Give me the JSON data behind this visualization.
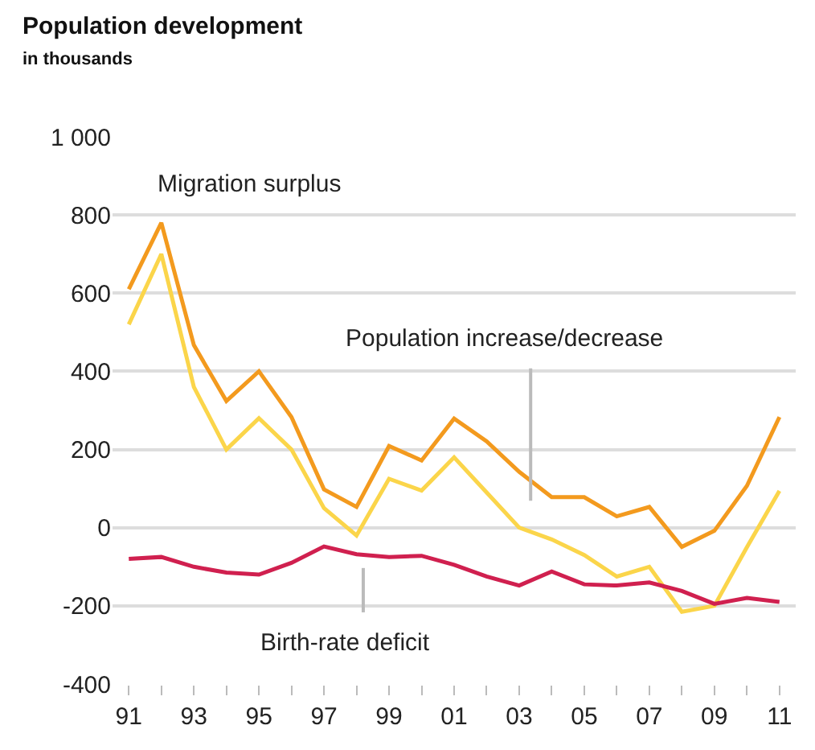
{
  "chart_data": {
    "type": "line",
    "title": "Population development",
    "subtitle": "in thousands",
    "x": [
      1991,
      1992,
      1993,
      1994,
      1995,
      1996,
      1997,
      1998,
      1999,
      2000,
      2001,
      2002,
      2003,
      2004,
      2005,
      2006,
      2007,
      2008,
      2009,
      2010,
      2011
    ],
    "series": [
      {
        "color": "#f39a1e",
        "values": [
          610,
          780,
          467,
          324,
          400,
          283,
          98,
          53,
          209,
          172,
          279,
          221,
          143,
          78,
          78,
          29,
          53,
          -49,
          -8,
          107,
          283
        ]
      },
      {
        "color": "#fbd54a",
        "values": [
          520,
          700,
          360,
          200,
          280,
          200,
          50,
          -20,
          125,
          95,
          180,
          90,
          0,
          -30,
          -70,
          -125,
          -100,
          -215,
          -200,
          -50,
          94
        ]
      },
      {
        "color": "#d0204f",
        "values": [
          -80,
          -75,
          -100,
          -115,
          -120,
          -90,
          -48,
          -68,
          -75,
          -72,
          -95,
          -125,
          -148,
          -112,
          -145,
          -148,
          -140,
          -162,
          -195,
          -180,
          -190
        ]
      }
    ],
    "annotations": [
      "Migration surplus",
      "Population increase/decrease",
      "Birth-rate deficit"
    ],
    "xlim": [
      1990.5,
      2011.5
    ],
    "xticks": [
      {
        "value": 1991,
        "label": "91"
      },
      {
        "value": 1992,
        "label": null
      },
      {
        "value": 1993,
        "label": "93"
      },
      {
        "value": 1994,
        "label": null
      },
      {
        "value": 1995,
        "label": "95"
      },
      {
        "value": 1996,
        "label": null
      },
      {
        "value": 1997,
        "label": "97"
      },
      {
        "value": 1998,
        "label": null
      },
      {
        "value": 1999,
        "label": "99"
      },
      {
        "value": 2000,
        "label": null
      },
      {
        "value": 2001,
        "label": "01"
      },
      {
        "value": 2002,
        "label": null
      },
      {
        "value": 2003,
        "label": "03"
      },
      {
        "value": 2004,
        "label": null
      },
      {
        "value": 2005,
        "label": "05"
      },
      {
        "value": 2006,
        "label": null
      },
      {
        "value": 2007,
        "label": "07"
      },
      {
        "value": 2008,
        "label": null
      },
      {
        "value": 2009,
        "label": "09"
      },
      {
        "value": 2010,
        "label": null
      },
      {
        "value": 2011,
        "label": "11"
      }
    ],
    "ylim": [
      -400,
      1000
    ],
    "yticks": [
      {
        "value": -400,
        "label": "-400"
      },
      {
        "value": -200,
        "label": "-200"
      },
      {
        "value": 0,
        "label": "0"
      },
      {
        "value": 200,
        "label": "200"
      },
      {
        "value": 400,
        "label": "400"
      },
      {
        "value": 600,
        "label": "600"
      },
      {
        "value": 800,
        "label": "800"
      },
      {
        "value": 1000,
        "label": "1 000"
      }
    ],
    "grid": "y",
    "legend": false,
    "marker": "none",
    "line_style": "solid"
  }
}
